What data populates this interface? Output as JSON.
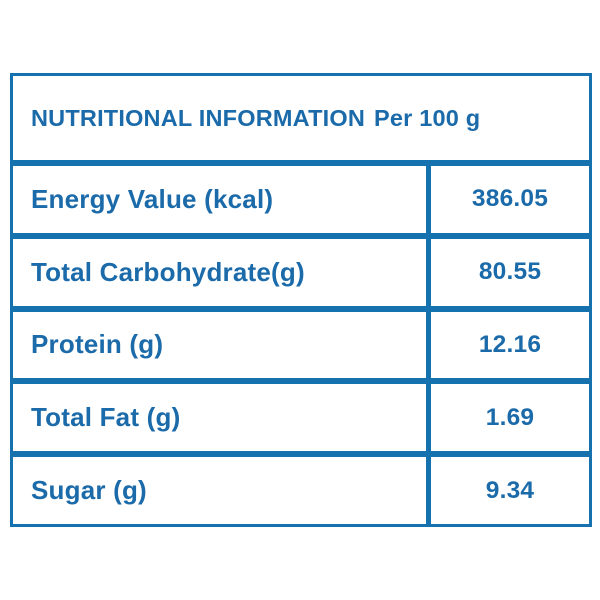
{
  "header": {
    "title": "NUTRITIONAL INFORMATION",
    "per_label": "Per 100 g"
  },
  "rows": [
    {
      "label": "Energy Value (kcal)",
      "value": "386.05"
    },
    {
      "label": "Total Carbohydrate(g)",
      "value": "80.55"
    },
    {
      "label": "Protein (g)",
      "value": "12.16"
    },
    {
      "label": "Total Fat (g)",
      "value": "1.69"
    },
    {
      "label": "Sugar (g)",
      "value": "9.34"
    }
  ],
  "colors": {
    "accent": "#1b6aa9",
    "border": "#1572ae",
    "background": "#ffffff"
  }
}
